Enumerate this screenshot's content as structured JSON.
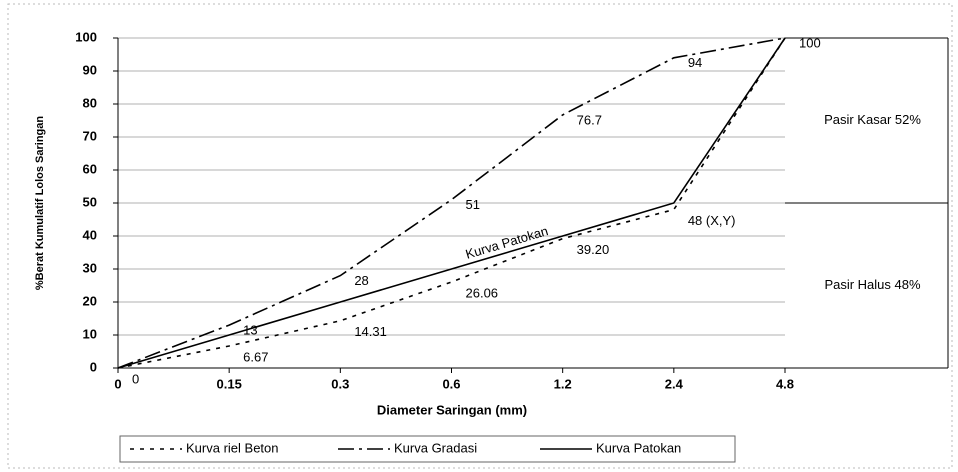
{
  "chart_data": {
    "type": "line",
    "x_label": "Diameter Saringan (mm)",
    "y_label": "%Berat Kumulatif Lolos Saringan",
    "categories": [
      "0",
      "0.15",
      "0.3",
      "0.6",
      "1.2",
      "2.4",
      "4.8"
    ],
    "ylim": [
      0,
      100
    ],
    "yticks": [
      0,
      10,
      20,
      30,
      40,
      50,
      60,
      70,
      80,
      90,
      100
    ],
    "grid": true,
    "series": [
      {
        "name": "Kurva riel Beton",
        "color": "#000000",
        "dash": "4,6",
        "values": [
          0,
          6.67,
          14.31,
          26.06,
          39.2,
          48,
          100
        ],
        "value_labels": [
          "0",
          "6.67",
          "14.31",
          "26.06",
          "39.20",
          "48 (X,Y)",
          null
        ]
      },
      {
        "name": "Kurva Gradasi",
        "color": "#000000",
        "dash": "16,5,3,5",
        "values": [
          0,
          13,
          28,
          51,
          76.7,
          94,
          100
        ],
        "value_labels": [
          null,
          "13",
          "28",
          "51",
          "76.7",
          "94",
          "100"
        ]
      },
      {
        "name": "Kurva Patokan",
        "color": "#000000",
        "dash": "",
        "values": [
          0,
          10,
          20,
          30,
          40,
          50,
          100
        ]
      }
    ],
    "line_annotation": "Kurva Patokan",
    "regions": [
      {
        "label": "Pasir Kasar 52%",
        "from": 50,
        "to": 100
      },
      {
        "label": "Pasir Halus 48%",
        "from": 0,
        "to": 50
      }
    ]
  }
}
